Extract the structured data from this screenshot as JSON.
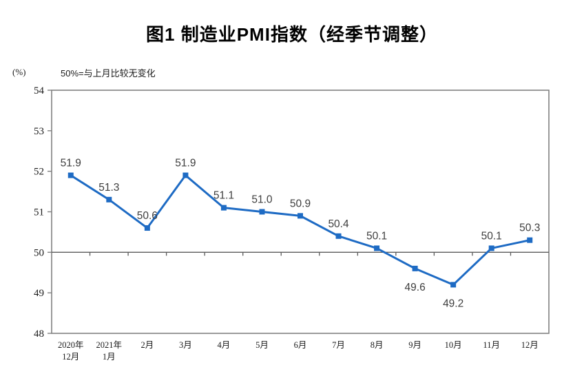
{
  "page": {
    "title": "图1 制造业PMI指数（经季节调整）",
    "unit_label": "(%)",
    "reference_note": "50%=与上月比较无变化"
  },
  "chart_data": {
    "type": "line",
    "title": "图1 制造业PMI指数（经季节调整）",
    "ylabel": "(%)",
    "annotation": "50%=与上月比较无变化",
    "categories": [
      "2020年12月",
      "2021年1月",
      "2月",
      "3月",
      "4月",
      "5月",
      "6月",
      "7月",
      "8月",
      "9月",
      "10月",
      "11月",
      "12月"
    ],
    "category_lines": [
      [
        "2020年",
        "12月"
      ],
      [
        "2021年",
        "1月"
      ],
      [
        "2月"
      ],
      [
        "3月"
      ],
      [
        "4月"
      ],
      [
        "5月"
      ],
      [
        "6月"
      ],
      [
        "7月"
      ],
      [
        "8月"
      ],
      [
        "9月"
      ],
      [
        "10月"
      ],
      [
        "11月"
      ],
      [
        "12月"
      ]
    ],
    "series": [
      {
        "name": "制造业PMI指数",
        "values": [
          51.9,
          51.3,
          50.6,
          51.9,
          51.1,
          51.0,
          50.9,
          50.4,
          50.1,
          49.6,
          49.2,
          50.1,
          50.3
        ]
      }
    ],
    "point_labels": [
      "51.9",
      "51.3",
      "50.6",
      "51.9",
      "51.1",
      "51.0",
      "50.9",
      "50.4",
      "50.1",
      "49.6",
      "49.2",
      "50.1",
      "50.3"
    ],
    "label_side": [
      "above",
      "above",
      "above",
      "above",
      "above",
      "above",
      "above",
      "above",
      "above",
      "below",
      "below",
      "above",
      "above"
    ],
    "ylim": [
      48,
      54
    ],
    "yticks": [
      48,
      49,
      50,
      51,
      52,
      53,
      54
    ],
    "reference_line": 50,
    "grid": false,
    "legend_position": "none",
    "colors": {
      "line": "#1E6BC4",
      "marker": "#1E6BC4",
      "axis": "#808080",
      "reference": "#595959",
      "point_label_text": "#3d3d3d",
      "tick_text": "#1a1a1a",
      "title_text": "#000000"
    }
  }
}
